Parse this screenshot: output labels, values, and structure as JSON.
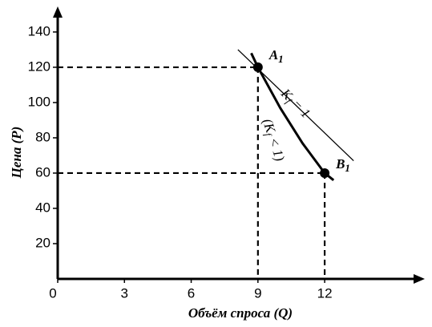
{
  "chart_data": {
    "type": "line",
    "x_label": "Объём спроса (Q)",
    "y_label": "Цена (P)",
    "xlim": [
      0,
      16.5
    ],
    "ylim": [
      0,
      154.5
    ],
    "xticks": [
      0,
      3,
      6,
      9,
      12
    ],
    "yticks": [
      20,
      40,
      60,
      80,
      100,
      120,
      140
    ],
    "series": [
      {
        "color": "#000000",
        "x": [
          8.7,
          9,
          10,
          11,
          12,
          12.4
        ],
        "values": [
          128,
          120,
          97,
          77,
          60,
          56
        ]
      },
      {
        "color": "#000000",
        "x": [
          8.1,
          13.3
        ],
        "values": [
          130,
          67
        ]
      }
    ],
    "points": [
      {
        "x": 9,
        "y": 120,
        "label": "A",
        "sub": "1"
      },
      {
        "x": 12,
        "y": 60,
        "label": "B",
        "sub": "1"
      }
    ],
    "annotations": [
      {
        "pre": "K",
        "sub": "f",
        "post": " = 1"
      },
      {
        "pre": "(K",
        "sub": "f",
        "post": " < 1)"
      }
    ]
  }
}
